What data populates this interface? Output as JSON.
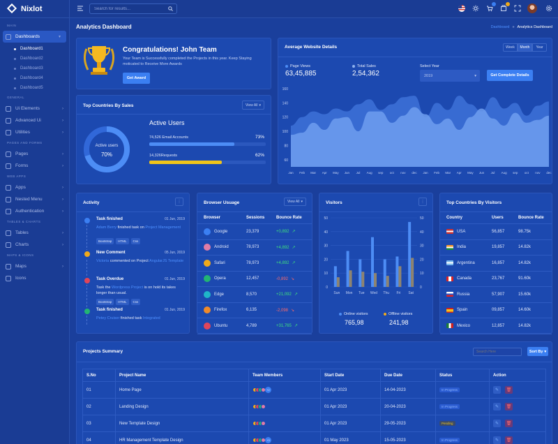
{
  "brand": {
    "name": "Nixlot"
  },
  "sidebar": {
    "sections": [
      "MAIN",
      "GENERAL",
      "PAGES AND FORMS",
      "WEB APPS",
      "TABLES & CHARTS",
      "MAPS & ICONS"
    ],
    "dashboards": "Dashboards",
    "sub": [
      "Dashboard1",
      "Dashboard2",
      "Dashboard3",
      "Dashboard4",
      "Dashboard5"
    ],
    "general": [
      "Ui Elements",
      "Advanced Ui",
      "Utilities"
    ],
    "pages": [
      "Pages",
      "Forms"
    ],
    "web": [
      "Apps",
      "Nested Menu",
      "Authentication"
    ],
    "tables": [
      "Tables",
      "Charts"
    ],
    "maps": [
      "Maps",
      "Icons"
    ]
  },
  "topbar": {
    "search_placeholder": "Search for results..."
  },
  "page": {
    "title": "Analytics Dashboard",
    "breadcrumb_root": "Dashboard",
    "breadcrumb_sep": "»",
    "breadcrumb_current": "Analytics Dashboard"
  },
  "congrats": {
    "title": "Congratulations! John Team",
    "text": "Your Team is Successfully completed the Projects in this year. Keep Staying moticated to Receive More Awards",
    "button": "Get Award"
  },
  "website": {
    "title": "Average Website Details",
    "tabs": [
      "Week",
      "Month",
      "Year"
    ],
    "page_views_label": "Page Views",
    "page_views": "63,45,885",
    "total_sales_label": "Total Sales",
    "total_sales": "2,54,362",
    "select_year_label": "Select Year",
    "select_year": "2019",
    "button": "Get Complete Details",
    "chart_data": {
      "type": "area",
      "x": [
        "Jan",
        "Feb",
        "Mar",
        "Apr",
        "May",
        "Jun",
        "Jul",
        "Aug",
        "sep",
        "oct",
        "nov",
        "dec",
        "Jan",
        "Feb",
        "Mar",
        "Apr",
        "May",
        "Jun",
        "Jul",
        "Aug",
        "sep",
        "oct",
        "nov",
        "dec"
      ],
      "ylim": [
        50,
        160
      ],
      "yticks": [
        "160",
        "140",
        "120",
        "100",
        "80",
        "60"
      ],
      "series": [
        {
          "values": [
            95,
            98,
            112,
            102,
            118,
            120,
            100,
            128,
            128,
            112,
            122,
            134,
            124,
            110,
            118,
            102,
            120,
            132,
            118,
            108,
            126,
            112,
            116,
            122
          ]
        },
        {
          "values": [
            108,
            120,
            128,
            124,
            132,
            128,
            138,
            145,
            130,
            138,
            148,
            150,
            120,
            140,
            130,
            150,
            138,
            128,
            148,
            132,
            140,
            122,
            136,
            142
          ]
        }
      ]
    }
  },
  "countries_sales": {
    "title": "Top Countries By Sales",
    "view_all": "View All",
    "donut_label": "Active users",
    "donut_value": "70%",
    "active_users": "Active Users",
    "email_label": "74,526 Email Accounts",
    "email_pct": "73%",
    "email_fill": 0.73,
    "req_label": "14,326Requests",
    "req_pct": "62%",
    "req_fill": 0.62
  },
  "activity": {
    "title": "Activity",
    "items": [
      {
        "title": "Task finished",
        "date": "01 Jun, 2019",
        "p1": "Adam Berry",
        "p2": " finished task on ",
        "p3": "Project Management",
        "tags": [
          "Bootstrap",
          "HTML",
          "Css"
        ],
        "color": "#3b7ff2"
      },
      {
        "title": "New Comment",
        "date": "05 Jun, 2019",
        "p1": "Victoria",
        "p2": " commented on Project ",
        "p3": "AngularJS Template",
        "tags": [],
        "color": "#f0a91a"
      },
      {
        "title": "Task Overdue",
        "date": "01 Jun, 2019",
        "p1": "Task the ",
        "p2": "Wordpress Project",
        "p3": " is on hold its takes longer than usual.",
        "tags": [
          "Bootstrap",
          "HTML",
          "Css"
        ],
        "color": "#e0455a"
      },
      {
        "title": "Task finished",
        "date": "01 Jun, 2019",
        "p1": "Petey Cruiser",
        "p2": " finished task ",
        "p3": "Integrated",
        "tags": [],
        "color": "#22b573"
      }
    ]
  },
  "browser": {
    "title": "Browser Usuage",
    "view_all": "View All",
    "cols": [
      "Browser",
      "Sessions",
      "Bounce Rate"
    ],
    "rows": [
      {
        "name": "Google",
        "sessions": "23,379",
        "rate": "+0,892",
        "up": true,
        "color": "#3b7ff2"
      },
      {
        "name": "Android",
        "sessions": "78,973",
        "rate": "+4,892",
        "up": true,
        "color": "#e07ca7"
      },
      {
        "name": "Safari",
        "sessions": "78,973",
        "rate": "+4,892",
        "up": true,
        "color": "#f0a91a"
      },
      {
        "name": "Opera",
        "sessions": "12,457",
        "rate": "-0,892",
        "up": false,
        "color": "#22b573"
      },
      {
        "name": "Edge",
        "sessions": "8,570",
        "rate": "+21,092",
        "up": true,
        "color": "#1fb6c8"
      },
      {
        "name": "Firefox",
        "sessions": "6,135",
        "rate": "-2,098",
        "up": false,
        "color": "#f08a2a"
      },
      {
        "name": "Ubuntu",
        "sessions": "4,789",
        "rate": "+31,765",
        "up": true,
        "color": "#e0455a"
      }
    ]
  },
  "visitors": {
    "title": "Visitors",
    "online_label": "Online visitors",
    "online": "765,98",
    "offline_label": "Offline visitors",
    "offline": "241,98",
    "chart_data": {
      "type": "bar",
      "categories": [
        "Sun",
        "Mon",
        "Tue",
        "Wed",
        "Thu",
        "Fri",
        "Sat"
      ],
      "left_ticks": [
        "50",
        "40",
        "30",
        "20",
        "10",
        "0"
      ],
      "right_ticks": [
        "50",
        "40",
        "30",
        "20",
        "10",
        "0"
      ],
      "ylim": [
        0,
        50
      ],
      "series": [
        {
          "name": "Online visitors",
          "values": [
            15,
            26,
            20,
            36,
            20,
            22,
            47
          ]
        },
        {
          "name": "Offline visitors",
          "values": [
            7,
            12,
            11,
            10,
            8,
            15,
            21
          ]
        }
      ]
    }
  },
  "top_visitors": {
    "title": "Top Countries By Visitors",
    "cols": [
      "Country",
      "Users",
      "Bounce Rate"
    ],
    "rows": [
      {
        "name": "USA",
        "users": "56,857",
        "rate": "98.75k"
      },
      {
        "name": "India",
        "users": "19,857",
        "rate": "14.82k"
      },
      {
        "name": "Argentina",
        "users": "16,857",
        "rate": "14.82k"
      },
      {
        "name": "Canada",
        "users": "23,767",
        "rate": "91.60k"
      },
      {
        "name": "Russia",
        "users": "57,907",
        "rate": "15.60k"
      },
      {
        "name": "Spain",
        "users": "09,857",
        "rate": "14.60k"
      },
      {
        "name": "Mexico",
        "users": "12,857",
        "rate": "14.82k"
      }
    ]
  },
  "projects": {
    "title": "Projects Summary",
    "search_placeholder": "Search Here",
    "sort": "Sort By",
    "cols": [
      "S.No",
      "Project Name",
      "Team Members",
      "Start Date",
      "Due Date",
      "Status",
      "Action"
    ],
    "rows": [
      {
        "no": "01",
        "name": "Home Page",
        "extra": "+2",
        "start": "01 Apr 2023",
        "due": "14-04-2023",
        "status": "In Progress",
        "pending": false
      },
      {
        "no": "02",
        "name": "Landing Design",
        "extra": "",
        "start": "01 Apr 2023",
        "due": "20-04-2023",
        "status": "In Progress",
        "pending": false
      },
      {
        "no": "03",
        "name": "New Template Design",
        "extra": "",
        "start": "01 Apr 2023",
        "due": "29-05-2023",
        "status": "Pending",
        "pending": true
      },
      {
        "no": "04",
        "name": "HR Management Template Design",
        "extra": "+3",
        "start": "01 May 2023",
        "due": "15-05-2023",
        "status": "In Progress",
        "pending": false
      }
    ]
  }
}
